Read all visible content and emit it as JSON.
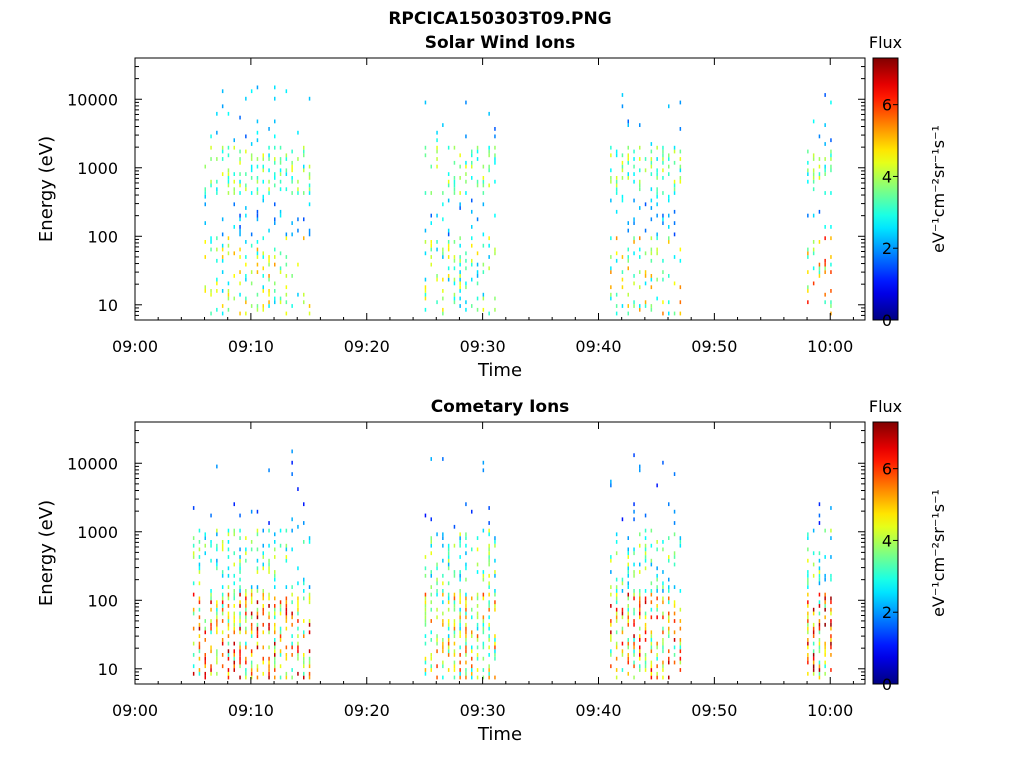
{
  "figure": {
    "title": "RPCICA150303T09.PNG"
  },
  "chart_data": [
    {
      "type": "heatmap",
      "title": "Solar Wind Ions",
      "xlabel": "Time",
      "ylabel": "Energy (eV)",
      "x_ticks": [
        "09:00",
        "09:10",
        "09:20",
        "09:30",
        "09:40",
        "09:50",
        "10:00"
      ],
      "xlim": [
        "09:00",
        "10:03"
      ],
      "y_ticks": [
        "10",
        "100",
        "1000",
        "10000"
      ],
      "yscale": "log",
      "ylim": [
        6,
        40000
      ],
      "colorbar": {
        "title": "Flux",
        "label": "eV⁻¹cm⁻²sr⁻¹s⁻¹",
        "ticks": [
          "0",
          "2",
          "4",
          "6"
        ],
        "range": [
          0,
          7.3
        ],
        "colormap": "jet"
      },
      "bursts": [
        {
          "start": "09:06",
          "end": "09:15",
          "max_flux": 5.3
        },
        {
          "start": "09:25",
          "end": "09:31",
          "max_flux": 4.8
        },
        {
          "start": "09:41",
          "end": "09:47",
          "max_flux": 5.6
        },
        {
          "start": "09:58",
          "end": "10:00",
          "max_flux": 6.3
        }
      ],
      "grid": false
    },
    {
      "type": "heatmap",
      "title": "Cometary Ions",
      "xlabel": "Time",
      "ylabel": "Energy (eV)",
      "x_ticks": [
        "09:00",
        "09:10",
        "09:20",
        "09:30",
        "09:40",
        "09:50",
        "10:00"
      ],
      "xlim": [
        "09:00",
        "10:03"
      ],
      "y_ticks": [
        "10",
        "100",
        "1000",
        "10000"
      ],
      "yscale": "log",
      "ylim": [
        6,
        40000
      ],
      "colorbar": {
        "title": "Flux",
        "label": "eV⁻¹cm⁻²sr⁻¹s⁻¹",
        "ticks": [
          "0",
          "2",
          "4",
          "6"
        ],
        "range": [
          0,
          7.3
        ],
        "colormap": "jet"
      },
      "bursts": [
        {
          "start": "09:05",
          "end": "09:15",
          "max_flux": 7.0
        },
        {
          "start": "09:25",
          "end": "09:31",
          "max_flux": 6.0
        },
        {
          "start": "09:41",
          "end": "09:47",
          "max_flux": 7.0
        },
        {
          "start": "09:58",
          "end": "10:00",
          "max_flux": 7.2
        }
      ],
      "grid": false
    }
  ]
}
